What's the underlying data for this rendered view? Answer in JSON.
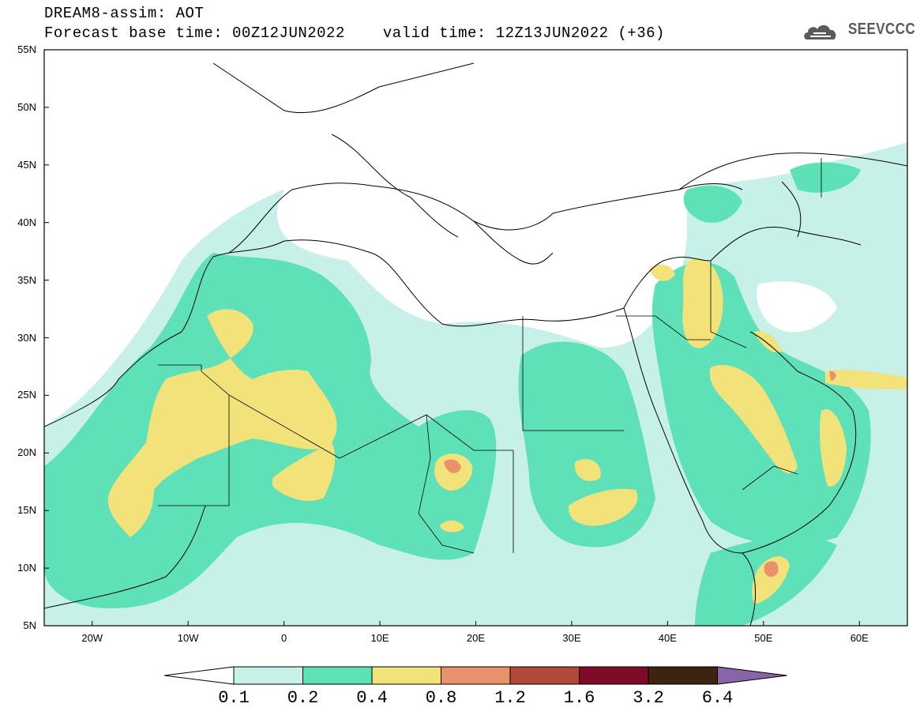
{
  "header": {
    "line1": "DREAM8-assim: AOT",
    "base_time": "Forecast base time: 00Z12JUN2022",
    "valid_time": "valid time: 12Z13JUN2022 (+36)"
  },
  "logo": {
    "text": "SEEVCCC",
    "icon": "cloud-icon"
  },
  "map": {
    "lat_labels": [
      "55N",
      "50N",
      "45N",
      "40N",
      "35N",
      "30N",
      "25N",
      "20N",
      "15N",
      "10N",
      "5N"
    ],
    "lon_labels": [
      "20W",
      "10W",
      "0",
      "10E",
      "20E",
      "30E",
      "40E",
      "50E",
      "60E"
    ],
    "lon_range": [
      -25,
      65
    ],
    "lat_range": [
      5,
      55
    ],
    "variable": "Aerosol Optical Thickness"
  },
  "colorbar": {
    "levels": [
      "0.1",
      "0.2",
      "0.4",
      "0.8",
      "1.2",
      "1.6",
      "3.2",
      "6.4"
    ],
    "colors": [
      "#c6f0e8",
      "#5ee0b8",
      "#f2e27a",
      "#e8916a",
      "#b04a3a",
      "#800a28",
      "#3c2410",
      "#8a64a8"
    ]
  }
}
